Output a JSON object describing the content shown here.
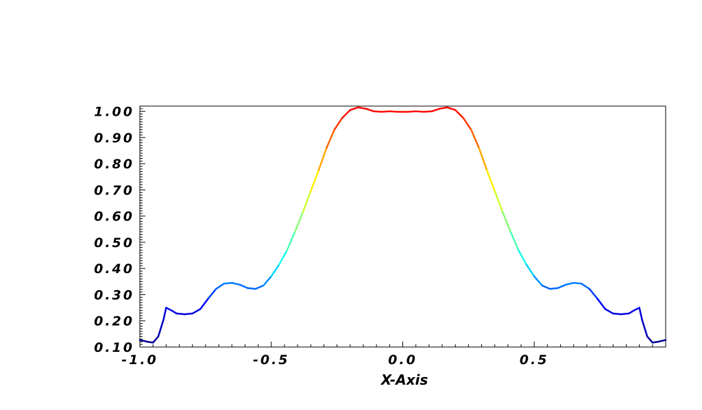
{
  "chart_data": {
    "type": "line",
    "title": "",
    "xlabel": "X-Axis",
    "ylabel": "",
    "xlim": [
      -1.0,
      1.0
    ],
    "ylim": [
      0.1,
      1.02
    ],
    "grid": false,
    "x_ticks": [
      -1.0,
      -0.5,
      0.0,
      0.5
    ],
    "x_tick_labels": [
      "-1.0",
      "-0.5",
      "0.0",
      "0.5"
    ],
    "y_ticks": [
      0.1,
      0.2,
      0.3,
      0.4,
      0.5,
      0.6,
      0.7,
      0.8,
      0.9,
      1.0
    ],
    "y_tick_labels": [
      "0.10",
      "0.20",
      "0.30",
      "0.40",
      "0.50",
      "0.60",
      "0.70",
      "0.80",
      "0.90",
      "1.00"
    ],
    "colormap": "jet",
    "colors": {
      "colormap_stops": [
        "#00008f",
        "#0000ff",
        "#00ffff",
        "#7fff7f",
        "#ffff00",
        "#ff7f00",
        "#ff0000"
      ]
    },
    "series": [
      {
        "x": [
          -1.0,
          -0.97,
          -0.95,
          -0.93,
          -0.91,
          -0.9,
          -0.88,
          -0.86,
          -0.83,
          -0.8,
          -0.77,
          -0.74,
          -0.71,
          -0.68,
          -0.65,
          -0.62,
          -0.59,
          -0.56,
          -0.53,
          -0.5,
          -0.47,
          -0.44,
          -0.41,
          -0.38,
          -0.35,
          -0.32,
          -0.29,
          -0.26,
          -0.23,
          -0.2,
          -0.17,
          -0.14,
          -0.11,
          -0.08,
          -0.05,
          -0.02,
          0.02,
          0.05,
          0.08,
          0.11,
          0.14,
          0.17,
          0.2,
          0.23,
          0.26,
          0.29,
          0.32,
          0.35,
          0.38,
          0.41,
          0.44,
          0.47,
          0.5,
          0.53,
          0.56,
          0.59,
          0.62,
          0.65,
          0.68,
          0.71,
          0.74,
          0.77,
          0.8,
          0.83,
          0.86,
          0.88,
          0.9,
          0.91,
          0.93,
          0.95,
          0.97,
          1.0
        ],
        "y": [
          0.127,
          0.12,
          0.117,
          0.14,
          0.205,
          0.25,
          0.24,
          0.228,
          0.225,
          0.228,
          0.245,
          0.285,
          0.322,
          0.342,
          0.345,
          0.338,
          0.325,
          0.322,
          0.335,
          0.37,
          0.415,
          0.47,
          0.54,
          0.615,
          0.695,
          0.775,
          0.86,
          0.93,
          0.975,
          1.005,
          1.015,
          1.01,
          1.0,
          0.998,
          1.0,
          0.998,
          0.998,
          1.0,
          0.998,
          1.0,
          1.01,
          1.015,
          1.005,
          0.975,
          0.93,
          0.86,
          0.775,
          0.695,
          0.615,
          0.54,
          0.47,
          0.415,
          0.37,
          0.335,
          0.322,
          0.325,
          0.338,
          0.345,
          0.342,
          0.322,
          0.285,
          0.245,
          0.228,
          0.225,
          0.228,
          0.24,
          0.25,
          0.205,
          0.14,
          0.117,
          0.12,
          0.127
        ]
      }
    ]
  }
}
